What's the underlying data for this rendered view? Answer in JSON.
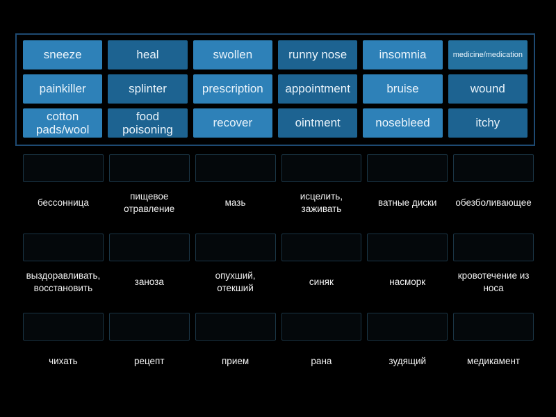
{
  "colors": {
    "background": "#000000",
    "panel_border": "#1e4a72",
    "slot_border": "#1a3545",
    "tile_text": "#eaf4fb",
    "label_text": "#f2f2f2",
    "tile_light": "#2e81b8",
    "tile_dark": "#1d6391",
    "tile_medium": "#24719f"
  },
  "word_bank": {
    "tiles": [
      {
        "label": "sneeze",
        "color": "#2e81b8"
      },
      {
        "label": "heal",
        "color": "#1d6391"
      },
      {
        "label": "swollen",
        "color": "#2e81b8"
      },
      {
        "label": "runny nose",
        "color": "#1d6391"
      },
      {
        "label": "insomnia",
        "color": "#2e81b8"
      },
      {
        "label": "medicine/medication",
        "color": "#24719f"
      },
      {
        "label": "painkiller",
        "color": "#2e81b8"
      },
      {
        "label": "splinter",
        "color": "#1d6391"
      },
      {
        "label": "prescription",
        "color": "#2e81b8"
      },
      {
        "label": "appointment",
        "color": "#1d6391"
      },
      {
        "label": "bruise",
        "color": "#2e81b8"
      },
      {
        "label": "wound",
        "color": "#1d6391"
      },
      {
        "label": "cotton pads/wool",
        "color": "#2e81b8"
      },
      {
        "label": "food poisoning",
        "color": "#1d6391"
      },
      {
        "label": "recover",
        "color": "#2e81b8"
      },
      {
        "label": "ointment",
        "color": "#1d6391"
      },
      {
        "label": "nosebleed",
        "color": "#2e81b8"
      },
      {
        "label": "itchy",
        "color": "#1d6391"
      }
    ]
  },
  "answer_groups": [
    {
      "definitions": [
        "бессонница",
        "пищевое отравление",
        "мазь",
        "исцелить, заживать",
        "ватные диски",
        "обезболивающее"
      ]
    },
    {
      "definitions": [
        "выздоравливать, восстановить",
        "заноза",
        "опухший, отекший",
        "синяк",
        "насморк",
        "кровотечение из носа"
      ]
    },
    {
      "definitions": [
        "чихать",
        "рецепт",
        "прием",
        "рана",
        "зудящий",
        "медикамент"
      ]
    }
  ]
}
